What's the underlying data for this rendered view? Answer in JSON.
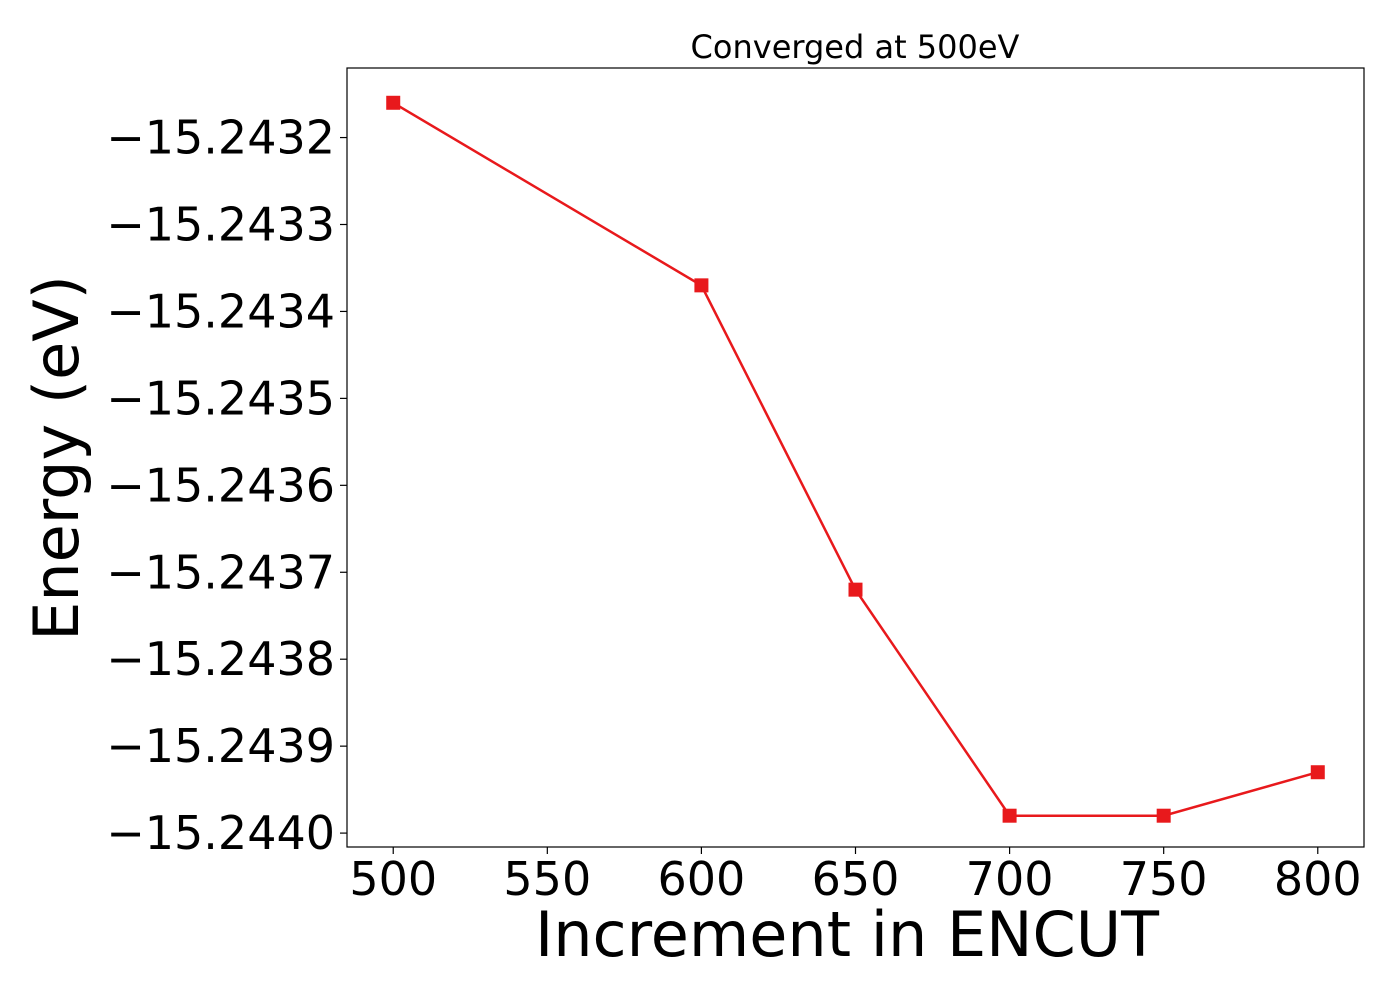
{
  "chart_data": {
    "type": "line",
    "title": "Converged at 500eV",
    "xlabel": "Increment in ENCUT",
    "ylabel": "Energy (eV)",
    "x": [
      500,
      600,
      650,
      700,
      750,
      800
    ],
    "series": [
      {
        "values": [
          -15.24316,
          -15.24337,
          -15.24372,
          -15.24398,
          -15.24398,
          -15.24393
        ],
        "color": "#e8191c",
        "marker": "square"
      }
    ],
    "xlim": [
      485,
      815
    ],
    "ylim": [
      -15.244016,
      -15.24312
    ],
    "xticks": [
      500,
      550,
      600,
      650,
      700,
      750,
      800
    ],
    "xtick_labels": [
      "500",
      "550",
      "600",
      "650",
      "700",
      "750",
      "800"
    ],
    "yticks": [
      -15.2432,
      -15.2433,
      -15.2434,
      -15.2435,
      -15.2436,
      -15.2437,
      -15.2438,
      -15.2439,
      -15.244
    ],
    "ytick_labels": [
      "−15.2432",
      "−15.2433",
      "−15.2434",
      "−15.2435",
      "−15.2436",
      "−15.2437",
      "−15.2438",
      "−15.2439",
      "−15.2440"
    ],
    "grid": false,
    "legend": "none"
  }
}
